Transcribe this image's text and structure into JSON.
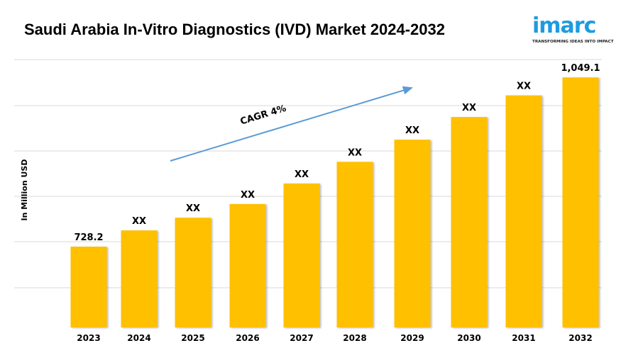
{
  "chart_data": {
    "type": "bar",
    "title": "Saudi Arabia In-Vitro Diagnostics (IVD) Market 2024-2032",
    "xlabel": "",
    "ylabel": "In Million USD",
    "categories": [
      "2023",
      "2024",
      "2025",
      "2026",
      "2027",
      "2028",
      "2029",
      "2030",
      "2031",
      "2032"
    ],
    "values": [
      728.2,
      759,
      783,
      809,
      848,
      889,
      931,
      974,
      1015,
      1049.1
    ],
    "data_labels": [
      "728.2",
      "XX",
      "XX",
      "XX",
      "XX",
      "XX",
      "XX",
      "XX",
      "XX",
      "1,049.1"
    ],
    "ylim": [
      575,
      1083
    ],
    "grid": true,
    "bar_color": "#FFC000",
    "annotation": {
      "text": "CAGR 4%",
      "arrow_color": "#5B9BD5"
    }
  },
  "logo": {
    "text": "imarc",
    "tagline": "TRANSFORMING IDEAS INTO IMPACT",
    "color": "#1E9BE0"
  }
}
